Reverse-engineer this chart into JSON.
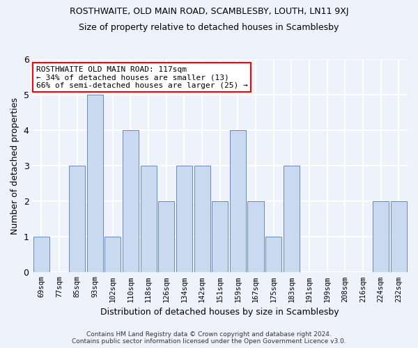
{
  "title": "ROSTHWAITE, OLD MAIN ROAD, SCAMBLESBY, LOUTH, LN11 9XJ",
  "subtitle": "Size of property relative to detached houses in Scamblesby",
  "xlabel": "Distribution of detached houses by size in Scamblesby",
  "ylabel": "Number of detached properties",
  "bins": [
    "69sqm",
    "77sqm",
    "85sqm",
    "93sqm",
    "102sqm",
    "110sqm",
    "118sqm",
    "126sqm",
    "134sqm",
    "142sqm",
    "151sqm",
    "159sqm",
    "167sqm",
    "175sqm",
    "183sqm",
    "191sqm",
    "199sqm",
    "208sqm",
    "216sqm",
    "224sqm",
    "232sqm"
  ],
  "values": [
    1,
    0,
    3,
    5,
    1,
    4,
    3,
    2,
    3,
    3,
    2,
    4,
    2,
    1,
    3,
    0,
    0,
    0,
    0,
    2,
    2
  ],
  "bar_color": "#c9d9f0",
  "bar_edge_color": "#6688bb",
  "highlight_index": 6,
  "annotation_line1": "ROSTHWAITE OLD MAIN ROAD: 117sqm",
  "annotation_line2": "← 34% of detached houses are smaller (13)",
  "annotation_line3": "66% of semi-detached houses are larger (25) →",
  "annotation_box_color": "white",
  "annotation_box_edge": "red",
  "footer_line1": "Contains HM Land Registry data © Crown copyright and database right 2024.",
  "footer_line2": "Contains public sector information licensed under the Open Government Licence v3.0.",
  "ylim": [
    0,
    6
  ],
  "yticks": [
    0,
    1,
    2,
    3,
    4,
    5,
    6
  ],
  "background_color": "#eef2fa",
  "grid_color": "white",
  "title_fontsize": 9,
  "subtitle_fontsize": 9,
  "ylabel_fontsize": 9,
  "xlabel_fontsize": 9
}
